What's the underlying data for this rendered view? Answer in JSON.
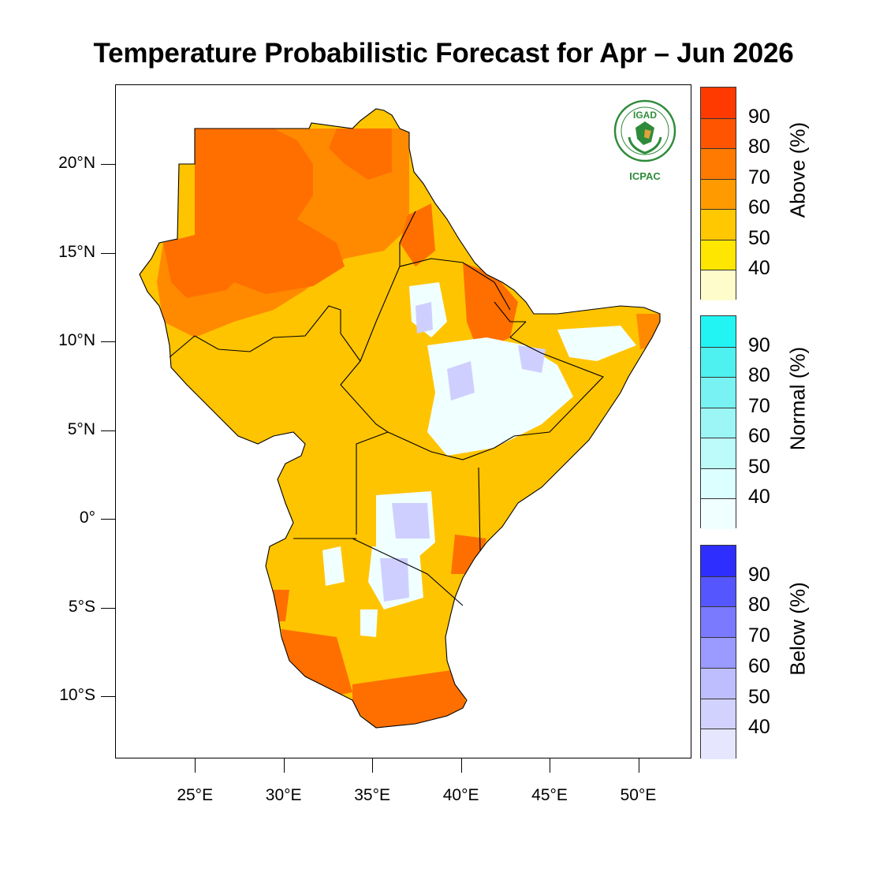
{
  "title": "Temperature Probabilistic Forecast for Apr – Jun 2026",
  "axes": {
    "y_ticks": [
      {
        "label": "20°N",
        "lat": 20
      },
      {
        "label": "15°N",
        "lat": 15
      },
      {
        "label": "10°N",
        "lat": 10
      },
      {
        "label": "5°N",
        "lat": 5
      },
      {
        "label": "0°",
        "lat": 0
      },
      {
        "label": "5°S",
        "lat": -5
      },
      {
        "label": "10°S",
        "lat": -10
      }
    ],
    "x_ticks": [
      {
        "label": "25°E",
        "lon": 25
      },
      {
        "label": "30°E",
        "lon": 30
      },
      {
        "label": "35°E",
        "lon": 35
      },
      {
        "label": "40°E",
        "lon": 40
      },
      {
        "label": "45°E",
        "lon": 45
      },
      {
        "label": "50°E",
        "lon": 50
      }
    ],
    "lon_range": [
      20.5,
      53
    ],
    "lat_range": [
      -13.5,
      24.5
    ]
  },
  "logo": {
    "top_text": "IGAD",
    "bottom_text": "ICPAC"
  },
  "legend": {
    "above": {
      "title": "Above (%)",
      "labels": [
        "40",
        "50",
        "60",
        "70",
        "80",
        "90"
      ],
      "colors": [
        "#fffccc",
        "#ffe600",
        "#ffc800",
        "#ff9a00",
        "#ff7a00",
        "#ff5500",
        "#ff3a00"
      ]
    },
    "normal": {
      "title": "Normal (%)",
      "labels": [
        "40",
        "50",
        "60",
        "70",
        "80",
        "90"
      ],
      "colors": [
        "#f0ffff",
        "#dcffff",
        "#bdfbfb",
        "#9cf6f6",
        "#78f2f2",
        "#4ef0f0",
        "#22f4f4"
      ]
    },
    "below": {
      "title": "Below (%)",
      "labels": [
        "40",
        "50",
        "60",
        "70",
        "80",
        "90"
      ],
      "colors": [
        "#e6e6ff",
        "#d2d2ff",
        "#bebeff",
        "#9a9aff",
        "#7a7aff",
        "#5656ff",
        "#2e2eff"
      ]
    }
  },
  "map_colors": {
    "above_90": "#ff5a00",
    "above_80": "#ff6f00",
    "above_70": "#ff8a00",
    "above_60": "#ffc400",
    "above_50": "#ffd000",
    "normal_40": "#f0ffff",
    "below_50": "#cfcfff"
  }
}
